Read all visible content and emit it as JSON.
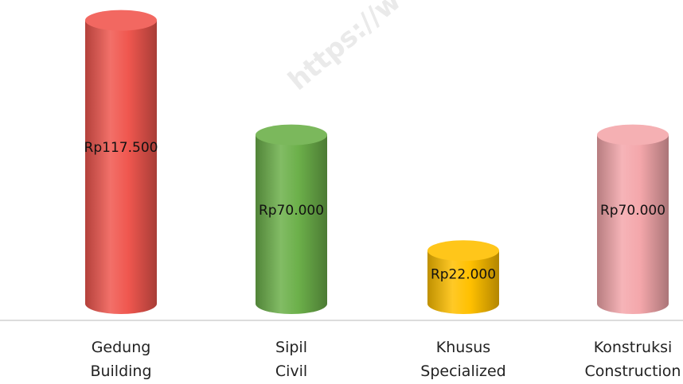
{
  "watermark": "https://w",
  "chart_data": {
    "type": "cylinder",
    "categories": [
      "Gedung\nBuilding",
      "Sipil\nCivil",
      "Khusus\nSpecialized",
      "Konstruksi\nConstruction"
    ],
    "values": [
      117500,
      70000,
      22000,
      70000
    ],
    "value_labels": [
      "Rp117.500",
      "Rp70.000",
      "Rp22.000",
      "Rp70.000"
    ],
    "colors": [
      "#f0574f",
      "#6cb04a",
      "#ffc000",
      "#f4a7ab"
    ],
    "ylim": [
      0,
      120000
    ]
  }
}
